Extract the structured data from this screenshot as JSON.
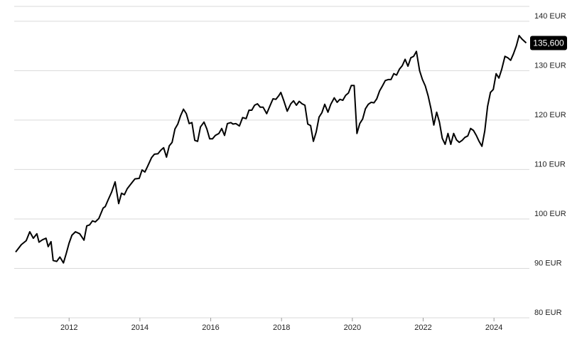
{
  "chart_data": {
    "type": "line",
    "color": "#000000",
    "grid": true,
    "x": [
      2010.49,
      2010.65,
      2010.79,
      2010.89,
      2010.99,
      2011.09,
      2011.15,
      2011.25,
      2011.35,
      2011.41,
      2011.49,
      2011.55,
      2011.65,
      2011.74,
      2011.84,
      2011.92,
      2012.0,
      2012.08,
      2012.18,
      2012.3,
      2012.42,
      2012.5,
      2012.58,
      2012.66,
      2012.74,
      2012.84,
      2012.96,
      2013.02,
      2013.1,
      2013.2,
      2013.3,
      2013.4,
      2013.48,
      2013.56,
      2013.64,
      2013.76,
      2013.86,
      2013.98,
      2014.06,
      2014.14,
      2014.22,
      2014.33,
      2014.41,
      2014.51,
      2014.59,
      2014.67,
      2014.75,
      2014.83,
      2014.91,
      2014.99,
      2015.07,
      2015.15,
      2015.23,
      2015.31,
      2015.39,
      2015.47,
      2015.55,
      2015.63,
      2015.71,
      2015.81,
      2015.89,
      2015.97,
      2016.05,
      2016.13,
      2016.23,
      2016.31,
      2016.39,
      2016.47,
      2016.57,
      2016.63,
      2016.71,
      2016.81,
      2016.9,
      2017.0,
      2017.08,
      2017.16,
      2017.24,
      2017.32,
      2017.4,
      2017.48,
      2017.58,
      2017.68,
      2017.76,
      2017.84,
      2017.92,
      2017.98,
      2018.06,
      2018.16,
      2018.26,
      2018.34,
      2018.42,
      2018.5,
      2018.58,
      2018.66,
      2018.74,
      2018.82,
      2018.9,
      2018.98,
      2019.06,
      2019.14,
      2019.22,
      2019.31,
      2019.39,
      2019.49,
      2019.57,
      2019.65,
      2019.73,
      2019.81,
      2019.89,
      2019.97,
      2020.05,
      2020.13,
      2020.21,
      2020.29,
      2020.37,
      2020.45,
      2020.53,
      2020.61,
      2020.69,
      2020.77,
      2020.85,
      2020.93,
      2021.01,
      2021.09,
      2021.17,
      2021.25,
      2021.33,
      2021.41,
      2021.49,
      2021.57,
      2021.65,
      2021.73,
      2021.81,
      2021.9,
      2021.98,
      2022.06,
      2022.14,
      2022.22,
      2022.3,
      2022.38,
      2022.46,
      2022.54,
      2022.62,
      2022.7,
      2022.78,
      2022.86,
      2022.94,
      2023.02,
      2023.1,
      2023.18,
      2023.26,
      2023.34,
      2023.42,
      2023.5,
      2023.58,
      2023.66,
      2023.74,
      2023.82,
      2023.9,
      2023.98,
      2024.06,
      2024.14,
      2024.22,
      2024.31,
      2024.39,
      2024.47,
      2024.55,
      2024.63,
      2024.71,
      2024.79,
      2024.91
    ],
    "values": [
      93.3,
      94.8,
      95.6,
      97.4,
      96.1,
      97.0,
      95.3,
      95.8,
      96.1,
      94.4,
      95.4,
      91.6,
      91.4,
      92.3,
      91.1,
      93.0,
      95.1,
      96.7,
      97.4,
      97.0,
      95.7,
      98.6,
      98.8,
      99.6,
      99.4,
      100.1,
      102.2,
      102.5,
      103.8,
      105.4,
      107.5,
      103.1,
      105.2,
      104.9,
      106.1,
      107.2,
      108.1,
      108.2,
      109.9,
      109.5,
      110.7,
      112.4,
      113.1,
      113.2,
      113.9,
      114.4,
      112.5,
      114.8,
      115.5,
      118.2,
      119.2,
      120.9,
      122.2,
      121.3,
      119.3,
      119.5,
      115.9,
      115.7,
      118.6,
      119.6,
      118.2,
      116.2,
      116.2,
      116.9,
      117.3,
      118.3,
      116.9,
      119.3,
      119.5,
      119.2,
      119.3,
      118.8,
      120.5,
      120.3,
      122.0,
      122.0,
      123.0,
      123.3,
      122.6,
      122.6,
      121.3,
      123.0,
      124.3,
      124.2,
      124.9,
      125.6,
      124.0,
      121.8,
      123.3,
      123.9,
      123.0,
      123.8,
      123.3,
      123.0,
      119.2,
      118.9,
      115.7,
      117.6,
      120.6,
      121.5,
      123.2,
      121.6,
      123.2,
      124.5,
      123.6,
      124.2,
      124.0,
      125.0,
      125.5,
      127.0,
      127.0,
      117.3,
      119.3,
      120.2,
      122.3,
      123.2,
      123.6,
      123.5,
      124.3,
      125.9,
      126.9,
      128.0,
      128.2,
      128.2,
      129.4,
      129.1,
      130.3,
      131.0,
      132.3,
      130.9,
      132.6,
      132.9,
      133.9,
      130.0,
      128.2,
      126.9,
      124.9,
      122.3,
      119.0,
      121.6,
      119.6,
      116.3,
      115.1,
      117.3,
      115.1,
      117.3,
      116.0,
      115.5,
      115.9,
      116.5,
      116.8,
      118.3,
      117.9,
      116.9,
      115.7,
      114.7,
      117.8,
      122.8,
      125.6,
      126.2,
      129.4,
      128.5,
      130.3,
      132.9,
      132.6,
      132.1,
      133.4,
      135.0,
      137.1,
      136.4,
      135.6
    ],
    "annotation": {
      "value": 135.6,
      "label": "135,600"
    },
    "xlim": [
      2010.45,
      2025.0
    ],
    "xticks": [
      2012,
      2014,
      2016,
      2018,
      2020,
      2022,
      2024
    ],
    "ylim": [
      80,
      143
    ],
    "yticks": [
      {
        "value": 80,
        "label": "80 EUR"
      },
      {
        "value": 90,
        "label": "90 EUR"
      },
      {
        "value": 100,
        "label": "100 EUR"
      },
      {
        "value": 110,
        "label": "110 EUR"
      },
      {
        "value": 120,
        "label": "120 EUR"
      },
      {
        "value": 130,
        "label": "130 EUR"
      },
      {
        "value": 140,
        "label": "140 EUR"
      }
    ]
  }
}
